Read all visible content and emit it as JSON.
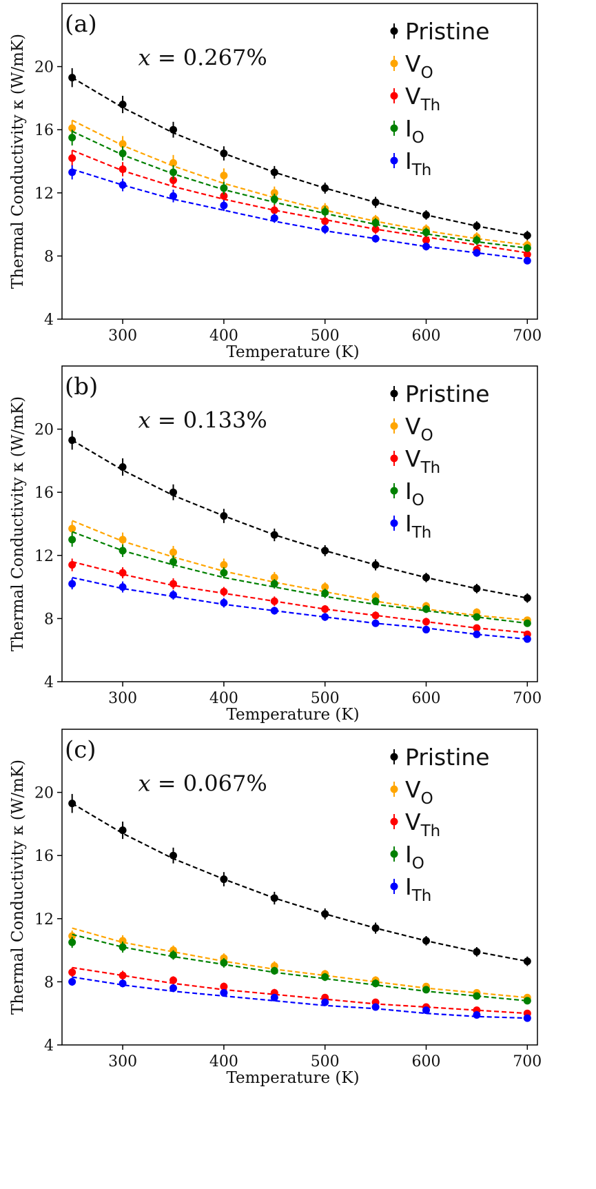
{
  "colors": {
    "pristine": "#000000",
    "vo": "#ffa500",
    "vth": "#ff0000",
    "io": "#008000",
    "ith": "#0000ff"
  },
  "chart_data": [
    {
      "type": "scatter",
      "panel_label": "(a)",
      "annotation": {
        "variable": "x",
        "value": "= 0.267%"
      },
      "xlabel": "Temperature (K)",
      "ylabel": "Thermal Conductivity κ (W/mK)",
      "xlim": [
        240,
        710
      ],
      "ylim": [
        4,
        24
      ],
      "xticks": [
        300,
        400,
        500,
        600,
        700
      ],
      "yticks": [
        4,
        8,
        12,
        16,
        20
      ],
      "x": [
        250,
        300,
        350,
        400,
        450,
        500,
        550,
        600,
        650,
        700
      ],
      "legend": [
        {
          "main": "Pristine",
          "sub": ""
        },
        {
          "main": "V",
          "sub": "O"
        },
        {
          "main": "V",
          "sub": "Th"
        },
        {
          "main": "I",
          "sub": "O"
        },
        {
          "main": "I",
          "sub": "Th"
        }
      ],
      "series": [
        {
          "name": "Pristine",
          "color_key": "pristine",
          "values": [
            19.3,
            17.6,
            16.0,
            14.5,
            13.3,
            12.3,
            11.4,
            10.6,
            9.9,
            9.3
          ],
          "fit": [
            19.3,
            17.4,
            15.8,
            14.5,
            13.3,
            12.3,
            11.4,
            10.6,
            9.9,
            9.3
          ],
          "errors": [
            0.6,
            0.55,
            0.5,
            0.45,
            0.4,
            0.35,
            0.35,
            0.3,
            0.3,
            0.3
          ]
        },
        {
          "name": "V_O",
          "color_key": "vo",
          "values": [
            16.1,
            15.1,
            13.9,
            13.1,
            12.0,
            11.0,
            10.3,
            9.7,
            9.2,
            8.7
          ],
          "fit": [
            16.6,
            15.0,
            13.7,
            12.6,
            11.7,
            10.9,
            10.2,
            9.6,
            9.1,
            8.7
          ],
          "errors": [
            0.5,
            0.5,
            0.5,
            0.45,
            0.4,
            0.35,
            0.3,
            0.3,
            0.3,
            0.3
          ]
        },
        {
          "name": "V_Th",
          "color_key": "vth",
          "values": [
            14.2,
            13.5,
            12.8,
            11.8,
            10.9,
            10.2,
            9.7,
            9.0,
            8.4,
            8.1
          ],
          "fit": [
            14.7,
            13.4,
            12.4,
            11.6,
            10.9,
            10.3,
            9.7,
            9.2,
            8.7,
            8.2
          ],
          "errors": [
            0.5,
            0.45,
            0.4,
            0.35,
            0.35,
            0.3,
            0.3,
            0.3,
            0.25,
            0.25
          ]
        },
        {
          "name": "I_O",
          "color_key": "io",
          "values": [
            15.5,
            14.5,
            13.3,
            12.3,
            11.6,
            10.8,
            10.1,
            9.5,
            9.0,
            8.5
          ],
          "fit": [
            15.9,
            14.4,
            13.2,
            12.2,
            11.4,
            10.7,
            10.0,
            9.4,
            8.9,
            8.5
          ],
          "errors": [
            0.5,
            0.45,
            0.45,
            0.4,
            0.35,
            0.35,
            0.3,
            0.3,
            0.3,
            0.25
          ]
        },
        {
          "name": "I_Th",
          "color_key": "ith",
          "values": [
            13.3,
            12.5,
            11.8,
            11.2,
            10.4,
            9.7,
            9.1,
            8.6,
            8.2,
            7.7
          ],
          "fit": [
            13.5,
            12.5,
            11.6,
            10.9,
            10.2,
            9.6,
            9.1,
            8.6,
            8.2,
            7.8
          ],
          "errors": [
            0.45,
            0.4,
            0.4,
            0.35,
            0.3,
            0.3,
            0.25,
            0.25,
            0.25,
            0.2
          ]
        }
      ]
    },
    {
      "type": "scatter",
      "panel_label": "(b)",
      "annotation": {
        "variable": "x",
        "value": "= 0.133%"
      },
      "xlabel": "Temperature (K)",
      "ylabel": "Thermal Conductivity κ (W/mK)",
      "xlim": [
        240,
        710
      ],
      "ylim": [
        4,
        24
      ],
      "xticks": [
        300,
        400,
        500,
        600,
        700
      ],
      "yticks": [
        4,
        8,
        12,
        16,
        20
      ],
      "x": [
        250,
        300,
        350,
        400,
        450,
        500,
        550,
        600,
        650,
        700
      ],
      "legend": [
        {
          "main": "Pristine",
          "sub": ""
        },
        {
          "main": "V",
          "sub": "O"
        },
        {
          "main": "V",
          "sub": "Th"
        },
        {
          "main": "I",
          "sub": "O"
        },
        {
          "main": "I",
          "sub": "Th"
        }
      ],
      "series": [
        {
          "name": "Pristine",
          "color_key": "pristine",
          "values": [
            19.3,
            17.6,
            16.0,
            14.5,
            13.3,
            12.3,
            11.4,
            10.6,
            9.9,
            9.3
          ],
          "fit": [
            19.3,
            17.4,
            15.8,
            14.5,
            13.3,
            12.3,
            11.4,
            10.6,
            9.9,
            9.3
          ],
          "errors": [
            0.6,
            0.55,
            0.5,
            0.45,
            0.4,
            0.35,
            0.35,
            0.3,
            0.3,
            0.3
          ]
        },
        {
          "name": "V_O",
          "color_key": "vo",
          "values": [
            13.7,
            13.0,
            12.2,
            11.4,
            10.6,
            10.0,
            9.4,
            8.8,
            8.4,
            7.9
          ],
          "fit": [
            14.2,
            12.9,
            11.9,
            11.0,
            10.3,
            9.7,
            9.1,
            8.6,
            8.2,
            7.9
          ],
          "errors": [
            0.45,
            0.45,
            0.4,
            0.4,
            0.35,
            0.3,
            0.3,
            0.25,
            0.25,
            0.2
          ]
        },
        {
          "name": "V_Th",
          "color_key": "vth",
          "values": [
            11.4,
            10.9,
            10.2,
            9.7,
            9.1,
            8.6,
            8.2,
            7.8,
            7.4,
            7.0
          ],
          "fit": [
            11.6,
            10.8,
            10.1,
            9.6,
            9.1,
            8.6,
            8.2,
            7.8,
            7.4,
            7.1
          ],
          "errors": [
            0.4,
            0.35,
            0.35,
            0.3,
            0.3,
            0.25,
            0.25,
            0.25,
            0.2,
            0.2
          ]
        },
        {
          "name": "I_O",
          "color_key": "io",
          "values": [
            13.0,
            12.3,
            11.6,
            10.9,
            10.2,
            9.6,
            9.1,
            8.6,
            8.1,
            7.7
          ],
          "fit": [
            13.5,
            12.3,
            11.4,
            10.6,
            10.0,
            9.4,
            8.9,
            8.5,
            8.1,
            7.7
          ],
          "errors": [
            0.45,
            0.4,
            0.4,
            0.35,
            0.3,
            0.3,
            0.25,
            0.25,
            0.2,
            0.2
          ]
        },
        {
          "name": "I_Th",
          "color_key": "ith",
          "values": [
            10.2,
            10.0,
            9.5,
            9.0,
            8.5,
            8.1,
            7.7,
            7.3,
            7.0,
            6.7
          ],
          "fit": [
            10.6,
            9.9,
            9.4,
            8.9,
            8.5,
            8.1,
            7.7,
            7.4,
            7.0,
            6.7
          ],
          "errors": [
            0.35,
            0.35,
            0.3,
            0.3,
            0.25,
            0.25,
            0.2,
            0.2,
            0.2,
            0.2
          ]
        }
      ]
    },
    {
      "type": "scatter",
      "panel_label": "(c)",
      "annotation": {
        "variable": "x",
        "value": "= 0.067%"
      },
      "xlabel": "Temperature (K)",
      "ylabel": "Thermal Conductivity κ (W/mK)",
      "xlim": [
        240,
        710
      ],
      "ylim": [
        4,
        24
      ],
      "xticks": [
        300,
        400,
        500,
        600,
        700
      ],
      "yticks": [
        4,
        8,
        12,
        16,
        20
      ],
      "x": [
        250,
        300,
        350,
        400,
        450,
        500,
        550,
        600,
        650,
        700
      ],
      "legend": [
        {
          "main": "Pristine",
          "sub": ""
        },
        {
          "main": "V",
          "sub": "O"
        },
        {
          "main": "V",
          "sub": "Th"
        },
        {
          "main": "I",
          "sub": "O"
        },
        {
          "main": "I",
          "sub": "Th"
        }
      ],
      "series": [
        {
          "name": "Pristine",
          "color_key": "pristine",
          "values": [
            19.3,
            17.6,
            16.0,
            14.5,
            13.3,
            12.3,
            11.4,
            10.6,
            9.9,
            9.3
          ],
          "fit": [
            19.3,
            17.4,
            15.8,
            14.5,
            13.3,
            12.3,
            11.4,
            10.6,
            9.9,
            9.3
          ],
          "errors": [
            0.6,
            0.55,
            0.5,
            0.45,
            0.4,
            0.35,
            0.35,
            0.3,
            0.3,
            0.3
          ]
        },
        {
          "name": "V_O",
          "color_key": "vo",
          "values": [
            10.9,
            10.6,
            10.0,
            9.5,
            9.0,
            8.5,
            8.1,
            7.7,
            7.3,
            7.0
          ],
          "fit": [
            11.4,
            10.5,
            9.9,
            9.3,
            8.8,
            8.4,
            8.0,
            7.6,
            7.3,
            7.0
          ],
          "errors": [
            0.35,
            0.35,
            0.3,
            0.3,
            0.3,
            0.25,
            0.25,
            0.2,
            0.2,
            0.2
          ]
        },
        {
          "name": "V_Th",
          "color_key": "vth",
          "values": [
            8.6,
            8.4,
            8.1,
            7.7,
            7.3,
            7.0,
            6.7,
            6.4,
            6.2,
            6.0
          ],
          "fit": [
            8.9,
            8.4,
            7.9,
            7.5,
            7.2,
            6.9,
            6.6,
            6.4,
            6.2,
            6.0
          ],
          "errors": [
            0.3,
            0.3,
            0.25,
            0.25,
            0.25,
            0.2,
            0.2,
            0.2,
            0.15,
            0.15
          ]
        },
        {
          "name": "I_O",
          "color_key": "io",
          "values": [
            10.5,
            10.2,
            9.7,
            9.2,
            8.7,
            8.3,
            7.9,
            7.5,
            7.1,
            6.8
          ],
          "fit": [
            11.0,
            10.2,
            9.6,
            9.1,
            8.6,
            8.2,
            7.8,
            7.4,
            7.1,
            6.8
          ],
          "errors": [
            0.35,
            0.35,
            0.3,
            0.3,
            0.25,
            0.25,
            0.25,
            0.2,
            0.2,
            0.2
          ]
        },
        {
          "name": "I_Th",
          "color_key": "ith",
          "values": [
            8.0,
            7.9,
            7.6,
            7.3,
            7.0,
            6.7,
            6.4,
            6.2,
            5.9,
            5.7
          ],
          "fit": [
            8.3,
            7.8,
            7.4,
            7.1,
            6.8,
            6.5,
            6.3,
            6.0,
            5.8,
            5.7
          ],
          "errors": [
            0.25,
            0.25,
            0.25,
            0.2,
            0.2,
            0.2,
            0.15,
            0.15,
            0.15,
            0.15
          ]
        }
      ]
    }
  ]
}
